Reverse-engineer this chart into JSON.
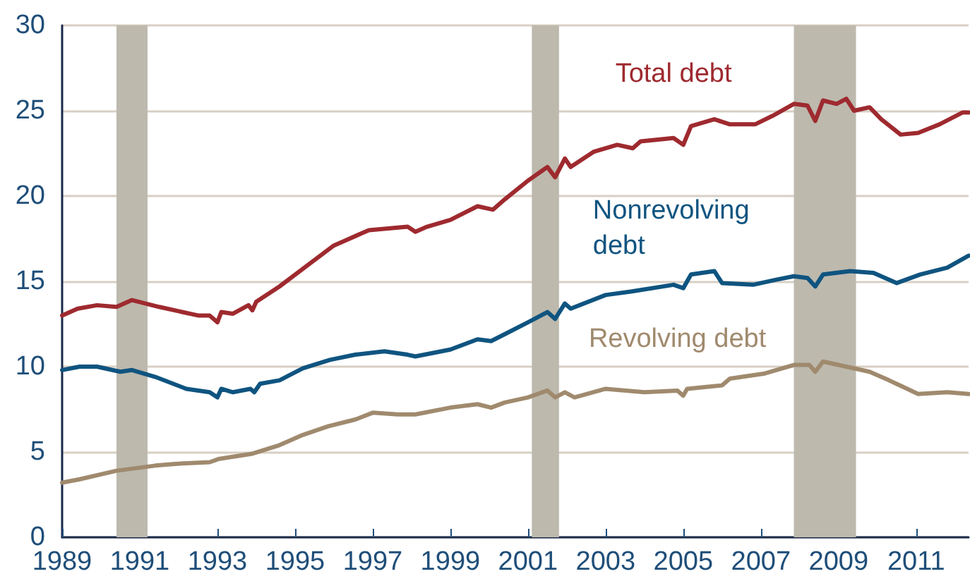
{
  "chart_data": {
    "type": "line",
    "xlim": [
      1989,
      2012.35
    ],
    "xticks": [
      1989,
      1991,
      1993,
      1995,
      1997,
      1999,
      2001,
      2003,
      2005,
      2007,
      2009,
      2011
    ],
    "ylim": [
      0,
      30
    ],
    "yticks": [
      0,
      5,
      10,
      15,
      20,
      25,
      30
    ],
    "grid": "y",
    "marker": "none",
    "line_style": "solid",
    "bands": [
      {
        "axis": "x",
        "from": 1990.4,
        "to": 1991.2,
        "color": "#bdb9ad"
      },
      {
        "axis": "x",
        "from": 2001.1,
        "to": 2001.8,
        "color": "#bdb9ad"
      },
      {
        "axis": "x",
        "from": 2007.85,
        "to": 2009.45,
        "color": "#bdb9ad"
      }
    ],
    "series": [
      {
        "name": "Total debt",
        "color": "#9e2a2f",
        "x": [
          1989.0,
          1989.4,
          1989.9,
          1990.4,
          1990.8,
          1991.5,
          1992.5,
          1992.8,
          1993.0,
          1993.1,
          1993.4,
          1993.8,
          1993.9,
          1994.0,
          1994.6,
          1995.3,
          1996.0,
          1996.3,
          1996.9,
          1997.9,
          1998.1,
          1998.4,
          1999.0,
          1999.7,
          2000.1,
          2000.4,
          2001.0,
          2001.5,
          2001.7,
          2001.95,
          2002.1,
          2002.7,
          2003.3,
          2003.7,
          2003.9,
          2004.75,
          2005.0,
          2005.2,
          2005.8,
          2006.2,
          2006.85,
          2007.3,
          2007.85,
          2008.2,
          2008.4,
          2008.6,
          2008.95,
          2009.2,
          2009.4,
          2009.8,
          2010.1,
          2010.6,
          2011.05,
          2011.6,
          2012.2,
          2012.35
        ],
        "values": [
          13.0,
          13.4,
          13.6,
          13.5,
          13.9,
          13.5,
          13.0,
          13.0,
          12.6,
          13.2,
          13.1,
          13.6,
          13.3,
          13.8,
          14.7,
          15.9,
          17.1,
          17.4,
          18.0,
          18.2,
          17.9,
          18.2,
          18.6,
          19.4,
          19.2,
          19.8,
          20.9,
          21.7,
          21.1,
          22.2,
          21.7,
          22.6,
          23.0,
          22.8,
          23.2,
          23.4,
          23.0,
          24.1,
          24.5,
          24.2,
          24.2,
          24.7,
          25.4,
          25.3,
          24.4,
          25.6,
          25.4,
          25.7,
          25.0,
          25.2,
          24.5,
          23.6,
          23.7,
          24.2,
          24.9,
          24.9
        ]
      },
      {
        "name": "Nonrevolving debt",
        "color": "#0f5480",
        "x": [
          1989.0,
          1989.45,
          1989.9,
          1990.5,
          1990.8,
          1991.4,
          1992.2,
          1992.8,
          1993.0,
          1993.1,
          1993.4,
          1993.85,
          1993.95,
          1994.1,
          1994.6,
          1995.2,
          1995.9,
          1996.55,
          1997.3,
          1997.9,
          1998.1,
          1999.0,
          1999.7,
          2000.05,
          2000.4,
          2001.0,
          2001.5,
          2001.7,
          2001.95,
          2002.1,
          2003.0,
          2003.65,
          2004.75,
          2005.0,
          2005.2,
          2005.8,
          2006.0,
          2006.8,
          2007.4,
          2007.85,
          2008.2,
          2008.4,
          2008.6,
          2009.3,
          2009.9,
          2010.5,
          2011.1,
          2011.8,
          2012.35
        ],
        "values": [
          9.8,
          10.0,
          10.0,
          9.7,
          9.8,
          9.4,
          8.7,
          8.5,
          8.2,
          8.7,
          8.5,
          8.7,
          8.5,
          9.0,
          9.2,
          9.9,
          10.4,
          10.7,
          10.9,
          10.7,
          10.6,
          11.0,
          11.6,
          11.5,
          11.9,
          12.6,
          13.2,
          12.8,
          13.7,
          13.4,
          14.2,
          14.4,
          14.8,
          14.6,
          15.4,
          15.6,
          14.9,
          14.8,
          15.1,
          15.3,
          15.2,
          14.7,
          15.4,
          15.6,
          15.5,
          14.9,
          15.4,
          15.8,
          16.5
        ]
      },
      {
        "name": "Revolving debt",
        "color": "#a08a6e",
        "x": [
          1989.0,
          1989.45,
          1990.4,
          1991.4,
          1991.9,
          1992.8,
          1993.05,
          1993.9,
          1994.6,
          1995.2,
          1995.85,
          1996.55,
          1997.0,
          1997.65,
          1998.1,
          1999.0,
          1999.7,
          2000.05,
          2000.4,
          2001.0,
          2001.5,
          2001.7,
          2001.95,
          2002.2,
          2003.0,
          2004.0,
          2004.85,
          2005.0,
          2005.1,
          2006.0,
          2006.2,
          2007.1,
          2007.85,
          2008.25,
          2008.4,
          2008.6,
          2009.2,
          2009.8,
          2010.3,
          2011.05,
          2011.8,
          2012.35
        ],
        "values": [
          3.2,
          3.4,
          3.9,
          4.2,
          4.3,
          4.4,
          4.6,
          4.9,
          5.4,
          6.0,
          6.5,
          6.9,
          7.3,
          7.2,
          7.2,
          7.6,
          7.8,
          7.6,
          7.9,
          8.2,
          8.6,
          8.2,
          8.5,
          8.2,
          8.7,
          8.5,
          8.6,
          8.3,
          8.7,
          8.9,
          9.3,
          9.6,
          10.1,
          10.1,
          9.7,
          10.3,
          10.0,
          9.7,
          9.2,
          8.4,
          8.5,
          8.4
        ]
      }
    ]
  }
}
